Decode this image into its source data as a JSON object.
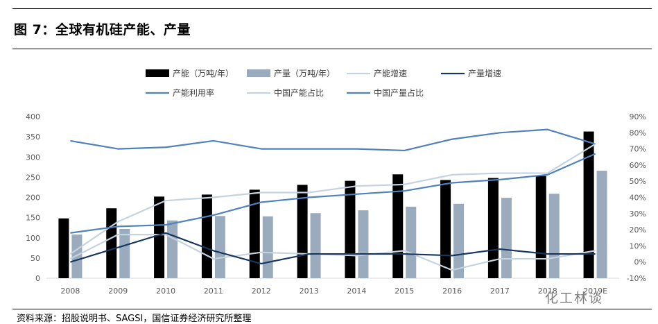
{
  "figure": {
    "title": "图 7：全球有机硅产能、产量",
    "source": "资料来源：招股说明书、SAGSI，国信证券经济研究所整理"
  },
  "watermark": {
    "text": "化工林谈"
  },
  "chart_data": {
    "type": "bar",
    "categories": [
      "2008",
      "2009",
      "2010",
      "2011",
      "2012",
      "2013",
      "2014",
      "2015",
      "2016",
      "2017",
      "2018",
      "2019E"
    ],
    "y_left": {
      "range": [
        0,
        400
      ],
      "ticks": [
        "0",
        "50",
        "100",
        "150",
        "200",
        "250",
        "300",
        "350",
        "400"
      ]
    },
    "y_right": {
      "range": [
        -10,
        90
      ],
      "ticks": [
        "-10%",
        "0%",
        "10%",
        "20%",
        "30%",
        "40%",
        "50%",
        "60%",
        "70%",
        "80%",
        "90%"
      ]
    },
    "grid": false,
    "legend": "top",
    "series": [
      {
        "name": "产能（万吨/年）",
        "kind": "bar",
        "axis": "left",
        "color": "#000000",
        "values": [
          148,
          173,
          202,
          207,
          219,
          231,
          241,
          257,
          243,
          248,
          253,
          363
        ]
      },
      {
        "name": "产量（万吨/年）",
        "kind": "bar",
        "axis": "left",
        "color": "#9aabbd",
        "values": [
          108,
          122,
          143,
          154,
          153,
          161,
          168,
          177,
          184,
          199,
          209,
          266
        ]
      },
      {
        "name": "产能增速",
        "kind": "line",
        "axis": "right",
        "color": "#c5d2e0",
        "values": [
          2,
          17,
          17,
          2,
          6,
          5,
          4,
          7,
          -5,
          2,
          2,
          7
        ]
      },
      {
        "name": "产量增速",
        "kind": "line",
        "axis": "right",
        "color": "#17375e",
        "values": [
          0,
          9,
          18,
          7,
          -1,
          5,
          5,
          5,
          4,
          8,
          5,
          5
        ]
      },
      {
        "name": "产能利用率",
        "kind": "line",
        "axis": "right",
        "color": "#4f81bd",
        "values": [
          75,
          70,
          71,
          75,
          70,
          70,
          70,
          69,
          76,
          80,
          82,
          73
        ]
      },
      {
        "name": "中国产能占比",
        "kind": "line",
        "axis": "right",
        "color": "#c5d2e0",
        "values": [
          5,
          25,
          38,
          40,
          43,
          43,
          47,
          48,
          54,
          55,
          55,
          73
        ]
      },
      {
        "name": "中国产量占比",
        "kind": "line",
        "axis": "right",
        "color": "#4f81bd",
        "values": [
          18,
          22,
          23,
          29,
          37,
          40,
          42,
          44,
          49,
          51,
          54,
          67
        ]
      }
    ]
  }
}
